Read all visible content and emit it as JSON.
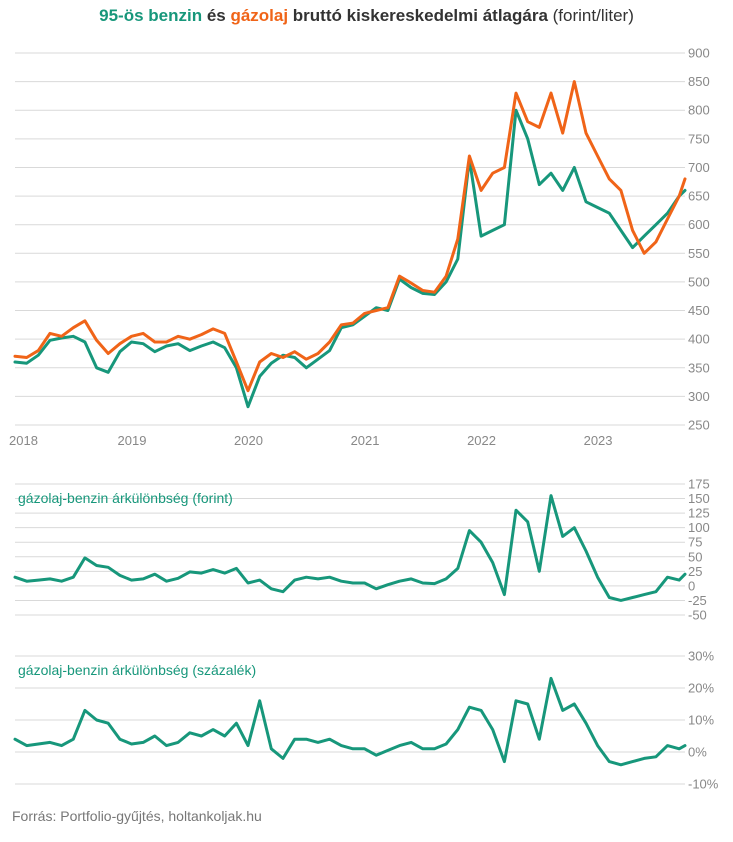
{
  "title": {
    "part1": "95-ös benzin",
    "part2": " és ",
    "part3": "gázolaj",
    "part4": " bruttó kiskereskedelmi átlagára ",
    "part5": "(forint/liter)"
  },
  "colors": {
    "benzin": "#17977b",
    "gazolaj": "#f06418",
    "grid": "#d9d9d9",
    "tick": "#888888"
  },
  "source": "Forrás: Portfolio-gyűjtés, holtankoljak.hu",
  "chart_data": [
    {
      "type": "line",
      "title": "95-ös benzin és gázolaj bruttó kiskereskedelmi átlagára (forint/liter)",
      "x_ticks": [
        "2018",
        "2019",
        "2020",
        "2021",
        "2022",
        "2023"
      ],
      "xlim": [
        2018.0,
        2023.75
      ],
      "y_ticks": [
        250,
        300,
        350,
        400,
        450,
        500,
        550,
        600,
        650,
        700,
        750,
        800,
        850,
        900
      ],
      "ylim": [
        250,
        900
      ],
      "grid": true,
      "x": [
        2018.0,
        2018.1,
        2018.2,
        2018.3,
        2018.4,
        2018.5,
        2018.6,
        2018.7,
        2018.8,
        2018.9,
        2019.0,
        2019.1,
        2019.2,
        2019.3,
        2019.4,
        2019.5,
        2019.6,
        2019.7,
        2019.8,
        2019.9,
        2020.0,
        2020.1,
        2020.2,
        2020.3,
        2020.4,
        2020.5,
        2020.6,
        2020.7,
        2020.8,
        2020.9,
        2021.0,
        2021.1,
        2021.2,
        2021.3,
        2021.4,
        2021.5,
        2021.6,
        2021.7,
        2021.8,
        2021.9,
        2022.0,
        2022.1,
        2022.2,
        2022.3,
        2022.4,
        2022.5,
        2022.6,
        2022.7,
        2022.8,
        2022.9,
        2023.0,
        2023.1,
        2023.2,
        2023.3,
        2023.4,
        2023.5,
        2023.6,
        2023.7,
        2023.75
      ],
      "series": [
        {
          "name": "95-ös benzin",
          "color": "#17977b",
          "values": [
            360,
            358,
            372,
            398,
            402,
            405,
            395,
            350,
            342,
            378,
            395,
            392,
            378,
            388,
            392,
            380,
            388,
            395,
            385,
            350,
            282,
            335,
            358,
            372,
            368,
            350,
            365,
            380,
            420,
            425,
            440,
            455,
            450,
            505,
            490,
            480,
            478,
            500,
            540,
            715,
            580,
            590,
            600,
            800,
            750,
            670,
            690,
            660,
            700,
            640,
            630,
            620,
            590,
            560,
            580,
            600,
            620,
            650,
            660
          ]
        },
        {
          "name": "gázolaj",
          "color": "#f06418",
          "values": [
            370,
            368,
            380,
            410,
            405,
            420,
            432,
            398,
            375,
            392,
            405,
            410,
            395,
            395,
            405,
            400,
            408,
            418,
            410,
            360,
            310,
            360,
            375,
            368,
            378,
            365,
            375,
            395,
            425,
            428,
            445,
            450,
            455,
            510,
            498,
            485,
            482,
            510,
            575,
            720,
            660,
            690,
            700,
            830,
            780,
            770,
            830,
            760,
            850,
            760,
            720,
            680,
            660,
            590,
            550,
            570,
            610,
            650,
            680
          ]
        }
      ]
    },
    {
      "type": "line",
      "title": "gázolaj-benzin árkülönbség (forint)",
      "x": [
        2018.0,
        2018.1,
        2018.2,
        2018.3,
        2018.4,
        2018.5,
        2018.6,
        2018.7,
        2018.8,
        2018.9,
        2019.0,
        2019.1,
        2019.2,
        2019.3,
        2019.4,
        2019.5,
        2019.6,
        2019.7,
        2019.8,
        2019.9,
        2020.0,
        2020.1,
        2020.2,
        2020.3,
        2020.4,
        2020.5,
        2020.6,
        2020.7,
        2020.8,
        2020.9,
        2021.0,
        2021.1,
        2021.2,
        2021.3,
        2021.4,
        2021.5,
        2021.6,
        2021.7,
        2021.8,
        2021.9,
        2022.0,
        2022.1,
        2022.2,
        2022.3,
        2022.4,
        2022.5,
        2022.6,
        2022.7,
        2022.8,
        2022.9,
        2023.0,
        2023.1,
        2023.2,
        2023.3,
        2023.4,
        2023.5,
        2023.6,
        2023.7,
        2023.75
      ],
      "y_ticks": [
        -50,
        -25,
        0,
        25,
        50,
        75,
        100,
        125,
        150,
        175
      ],
      "ylim": [
        -50,
        175
      ],
      "grid": true,
      "series": [
        {
          "name": "",
          "color": "#17977b",
          "values": [
            15,
            8,
            10,
            12,
            8,
            15,
            48,
            35,
            32,
            18,
            10,
            12,
            20,
            8,
            13,
            24,
            22,
            28,
            22,
            30,
            5,
            10,
            -5,
            -10,
            10,
            15,
            12,
            15,
            8,
            5,
            5,
            -5,
            2,
            8,
            12,
            5,
            4,
            12,
            30,
            95,
            75,
            40,
            -15,
            130,
            110,
            25,
            155,
            85,
            100,
            60,
            15,
            -20,
            -25,
            -20,
            -15,
            -10,
            15,
            10,
            20
          ]
        }
      ]
    },
    {
      "type": "line",
      "title": "gázolaj-benzin árkülönbség (százalék)",
      "x": [
        2018.0,
        2018.1,
        2018.2,
        2018.3,
        2018.4,
        2018.5,
        2018.6,
        2018.7,
        2018.8,
        2018.9,
        2019.0,
        2019.1,
        2019.2,
        2019.3,
        2019.4,
        2019.5,
        2019.6,
        2019.7,
        2019.8,
        2019.9,
        2020.0,
        2020.1,
        2020.2,
        2020.3,
        2020.4,
        2020.5,
        2020.6,
        2020.7,
        2020.8,
        2020.9,
        2021.0,
        2021.1,
        2021.2,
        2021.3,
        2021.4,
        2021.5,
        2021.6,
        2021.7,
        2021.8,
        2021.9,
        2022.0,
        2022.1,
        2022.2,
        2022.3,
        2022.4,
        2022.5,
        2022.6,
        2022.7,
        2022.8,
        2022.9,
        2023.0,
        2023.1,
        2023.2,
        2023.3,
        2023.4,
        2023.5,
        2023.6,
        2023.7,
        2023.75
      ],
      "y_ticks": [
        -10,
        0,
        10,
        20,
        30
      ],
      "y_tick_labels": [
        "-10%",
        "0%",
        "10%",
        "20%",
        "30%"
      ],
      "ylim": [
        -10,
        30
      ],
      "grid": true,
      "series": [
        {
          "name": "",
          "color": "#17977b",
          "values": [
            4,
            2,
            2.5,
            3,
            2,
            4,
            13,
            10,
            9,
            4,
            2.5,
            3,
            5,
            2,
            3,
            6,
            5,
            7,
            5,
            9,
            2,
            16,
            1,
            -2,
            4,
            4,
            3,
            4,
            2,
            1,
            1,
            -1,
            0.5,
            2,
            3,
            1,
            1,
            2.5,
            7,
            14,
            13,
            7,
            -3,
            16,
            15,
            4,
            23,
            13,
            15,
            9,
            2,
            -3,
            -4,
            -3,
            -2,
            -1.5,
            2,
            1,
            2
          ]
        }
      ]
    }
  ]
}
